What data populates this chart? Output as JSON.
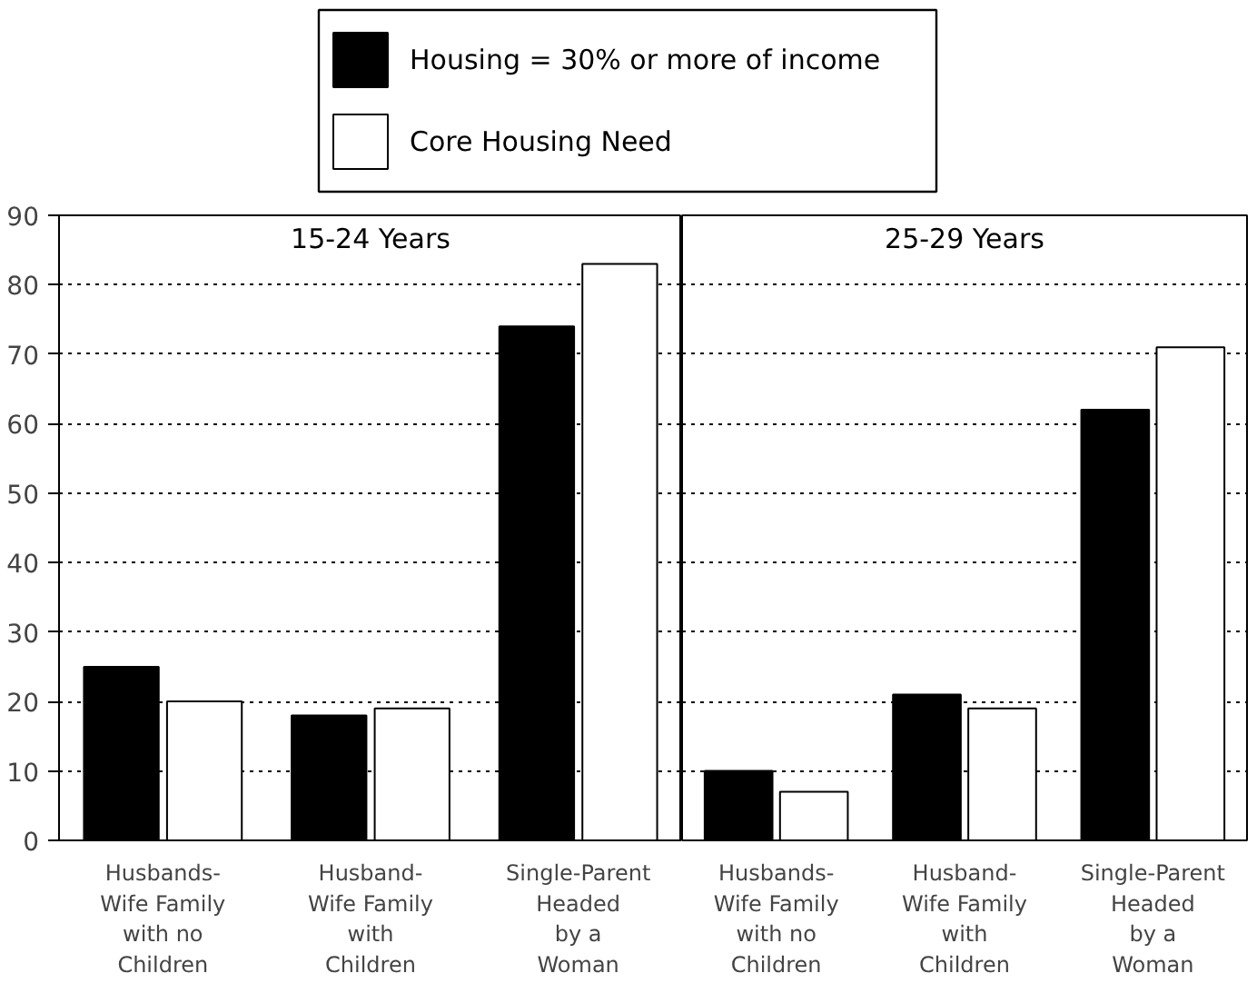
{
  "chart_data": [
    {
      "type": "bar",
      "title": "15-24 Years",
      "categories": [
        "Husbands-\nWife Family\nwith no\nChildren",
        "Husband-\nWife Family\nwith\nChildren",
        "Single-Parent\nHeaded\nby a\nWoman"
      ],
      "series": [
        {
          "name": "Housing = 30% or more of income",
          "color": "#000000",
          "values": [
            25,
            18,
            74
          ]
        },
        {
          "name": "Core Housing Need",
          "color": "#ffffff",
          "values": [
            20,
            19,
            83
          ]
        }
      ],
      "ylim": [
        0,
        90
      ],
      "yticks": [
        0,
        10,
        20,
        30,
        40,
        50,
        60,
        70,
        80,
        90
      ],
      "grid": "y",
      "legend": "top"
    },
    {
      "type": "bar",
      "title": "25-29 Years",
      "categories": [
        "Husbands-\nWife Family\nwith no\nChildren",
        "Husband-\nWife Family\nwith\nChildren",
        "Single-Parent\nHeaded\nby a\nWoman"
      ],
      "series": [
        {
          "color": "#000000",
          "values": [
            10,
            21,
            62
          ]
        },
        {
          "color": "#ffffff",
          "values": [
            7,
            19,
            71
          ]
        }
      ],
      "ylim": [
        0,
        90
      ],
      "yticks": [
        0,
        10,
        20,
        30,
        40,
        50,
        60,
        70,
        80,
        90
      ],
      "grid": "y",
      "tick_labels": "x"
    }
  ]
}
